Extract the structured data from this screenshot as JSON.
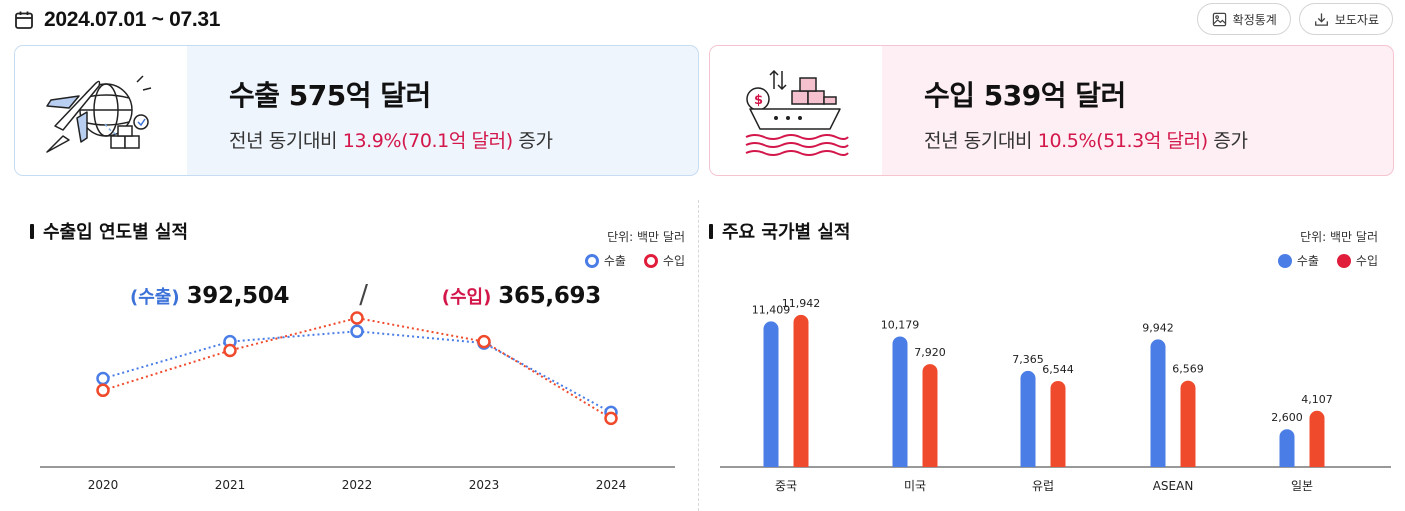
{
  "header": {
    "calendar_icon": "calendar-icon",
    "period": "2024.07.01 ~ 07.31",
    "buttons": [
      {
        "label": "확정통계",
        "icon": "image-icon"
      },
      {
        "label": "보도자료",
        "icon": "download-icon"
      }
    ]
  },
  "summary": {
    "export": {
      "amount_prefix": "수출 ",
      "amount": "575억 달러",
      "yoy_prefix": "전년 동기대비 ",
      "yoy_value": "13.9%(70.1억 달러)",
      "yoy_suffix": " 증가",
      "icon": "airplane-globe-icon"
    },
    "import": {
      "amount_prefix": "수입 ",
      "amount": "539억 달러",
      "yoy_prefix": "전년 동기대비 ",
      "yoy_value": "10.5%(51.3억 달러)",
      "yoy_suffix": " 증가",
      "icon": "cargo-ship-icon"
    }
  },
  "yearly": {
    "title": "수출입 연도별 실적",
    "unit": "단위: 백만 달러",
    "legend": [
      "수출",
      "수입"
    ],
    "totals": {
      "export_label": "(수출)",
      "export_value": "392,504",
      "separator": "/",
      "import_label": "(수입)",
      "import_value": "365,693"
    }
  },
  "country": {
    "title": "주요 국가별 실적",
    "unit": "단위: 백만 달러",
    "legend": [
      "수출",
      "수입"
    ]
  },
  "colors": {
    "export": "#4a7de6",
    "import": "#f04a2c",
    "accent": "#d3174b"
  },
  "chart_data": [
    {
      "type": "line",
      "title": "수출입 연도별 실적",
      "x": [
        "2020",
        "2021",
        "2022",
        "2023",
        "2024"
      ],
      "series": [
        {
          "name": "수출",
          "values": [
            55000,
            67500,
            71000,
            67000,
            43500
          ]
        },
        {
          "name": "수입",
          "values": [
            51000,
            64500,
            75500,
            67500,
            41500
          ]
        }
      ],
      "ylim": [
        25000,
        85000
      ],
      "grid": false,
      "legend": "top-right"
    },
    {
      "type": "bar",
      "title": "주요 국가별 실적",
      "categories": [
        "중국",
        "미국",
        "유럽",
        "ASEAN",
        "일본"
      ],
      "series": [
        {
          "name": "수출",
          "values": [
            11409,
            10179,
            7365,
            9942,
            2600
          ]
        },
        {
          "name": "수입",
          "values": [
            11942,
            7920,
            6544,
            6569,
            4107
          ]
        }
      ],
      "data_labels": {
        "수출": [
          "11,409",
          "10,179",
          "7,365",
          "9,942",
          "2,600"
        ],
        "수입": [
          "11,942",
          "7,920",
          "6,544",
          "6,569",
          "4,107"
        ]
      },
      "ylim": [
        0,
        12000
      ],
      "grid": false,
      "legend": "top-right"
    }
  ]
}
